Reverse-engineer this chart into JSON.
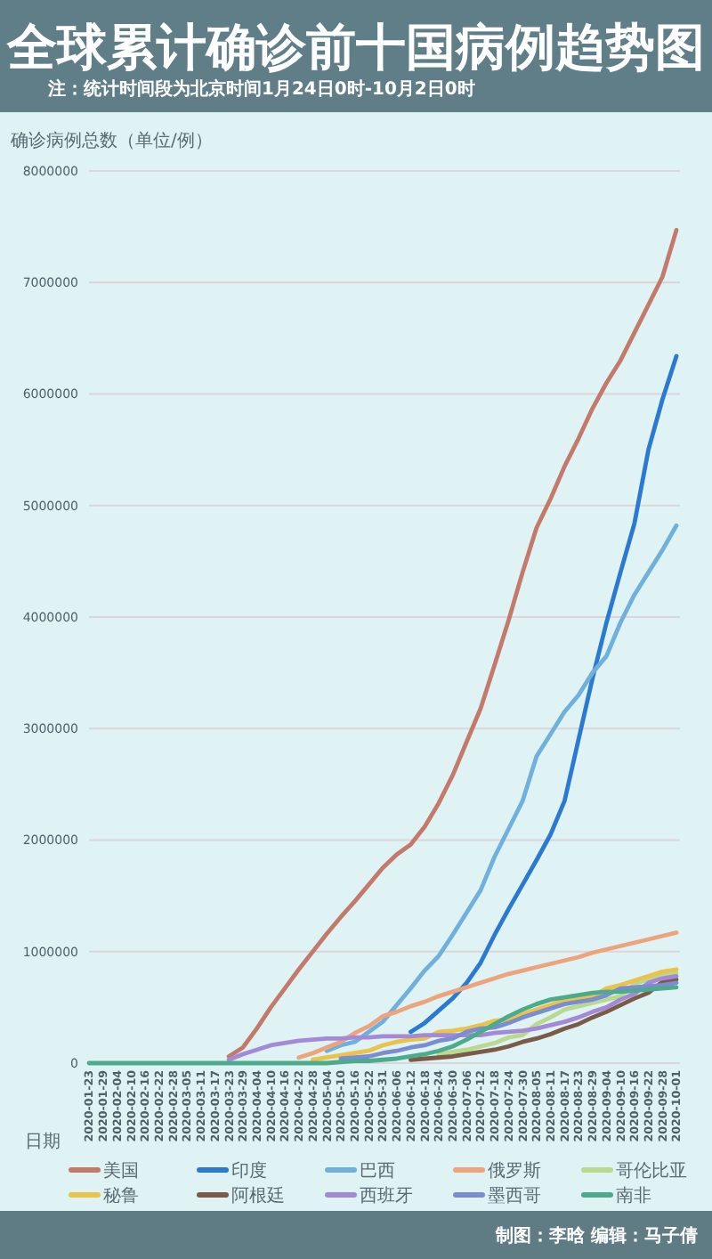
{
  "chart_data": {
    "type": "line",
    "title": "全球累计确诊前十国病例趋势图",
    "subtitle": "注：统计时间段为北京时间1月24日0时-10月2日0时",
    "xlabel": "日期",
    "ylabel": "确诊病例总数（单位/例）",
    "annotations": [
      "制图：李晗 编辑：马子倩"
    ],
    "categories": [
      "2020-01-23",
      "2020-01-29",
      "2020-02-04",
      "2020-02-10",
      "2020-02-16",
      "2020-02-22",
      "2020-02-28",
      "2020-03-05",
      "2020-03-11",
      "2020-03-17",
      "2020-03-23",
      "2020-03-29",
      "2020-04-04",
      "2020-04-10",
      "2020-04-16",
      "2020-04-22",
      "2020-04-28",
      "2020-05-04",
      "2020-05-10",
      "2020-05-16",
      "2020-05-22",
      "2020-05-31",
      "2020-06-06",
      "2020-06-12",
      "2020-06-18",
      "2020-06-24",
      "2020-06-30",
      "2020-07-06",
      "2020-07-12",
      "2020-07-18",
      "2020-07-24",
      "2020-07-30",
      "2020-08-05",
      "2020-08-11",
      "2020-08-17",
      "2020-08-23",
      "2020-08-29",
      "2020-09-04",
      "2020-09-10",
      "2020-09-16",
      "2020-09-22",
      "2020-09-28",
      "2020-10-01"
    ],
    "ylim": [
      0,
      8000000
    ],
    "yticks": [
      0,
      1000000,
      2000000,
      3000000,
      4000000,
      5000000,
      6000000,
      7000000,
      8000000
    ],
    "grid": "y",
    "legend": "bottom",
    "series": [
      {
        "name": "美国",
        "color": "#c47a6a",
        "values": [
          null,
          null,
          null,
          null,
          null,
          null,
          null,
          null,
          null,
          null,
          60000,
          140000,
          310000,
          500000,
          670000,
          840000,
          1000000,
          1160000,
          1310000,
          1450000,
          1600000,
          1750000,
          1870000,
          1960000,
          2120000,
          2330000,
          2580000,
          2880000,
          3180000,
          3570000,
          3970000,
          4400000,
          4800000,
          5060000,
          5350000,
          5600000,
          5870000,
          6100000,
          6300000,
          6550000,
          6800000,
          7050000,
          7470000
        ]
      },
      {
        "name": "印度",
        "color": "#2a7ad2",
        "values": [
          null,
          null,
          null,
          null,
          null,
          null,
          null,
          null,
          null,
          null,
          null,
          null,
          null,
          null,
          null,
          null,
          null,
          null,
          null,
          null,
          null,
          null,
          null,
          280000,
          360000,
          470000,
          580000,
          720000,
          900000,
          1150000,
          1380000,
          1600000,
          1820000,
          2050000,
          2350000,
          2900000,
          3450000,
          3950000,
          4400000,
          4840000,
          5500000,
          5950000,
          6340000
        ]
      },
      {
        "name": "巴西",
        "color": "#6fb0dc",
        "values": [
          null,
          null,
          null,
          null,
          null,
          null,
          null,
          null,
          null,
          null,
          null,
          null,
          null,
          null,
          null,
          null,
          null,
          110000,
          160000,
          190000,
          280000,
          370000,
          520000,
          670000,
          830000,
          960000,
          1150000,
          1350000,
          1550000,
          1850000,
          2100000,
          2350000,
          2750000,
          2950000,
          3150000,
          3300000,
          3500000,
          3650000,
          3950000,
          4200000,
          4400000,
          4600000,
          4820000
        ]
      },
      {
        "name": "俄罗斯",
        "color": "#eda47c",
        "values": [
          null,
          null,
          null,
          null,
          null,
          null,
          null,
          null,
          null,
          null,
          null,
          null,
          null,
          null,
          null,
          50000,
          90000,
          140000,
          190000,
          270000,
          330000,
          420000,
          460000,
          510000,
          550000,
          600000,
          640000,
          680000,
          720000,
          760000,
          800000,
          830000,
          860000,
          890000,
          920000,
          950000,
          990000,
          1020000,
          1050000,
          1080000,
          1110000,
          1140000,
          1170000
        ]
      },
      {
        "name": "哥伦比亚",
        "color": "#b9da8e",
        "values": [
          null,
          null,
          null,
          null,
          null,
          null,
          null,
          null,
          null,
          null,
          null,
          null,
          null,
          null,
          null,
          null,
          null,
          null,
          null,
          null,
          null,
          null,
          null,
          null,
          null,
          80000,
          100000,
          120000,
          150000,
          180000,
          230000,
          250000,
          350000,
          410000,
          480000,
          510000,
          540000,
          570000,
          600000,
          710000,
          750000,
          790000,
          810000
        ]
      },
      {
        "name": "秘鲁",
        "color": "#e9c34a",
        "values": [
          null,
          null,
          null,
          null,
          null,
          null,
          null,
          null,
          null,
          null,
          null,
          null,
          null,
          null,
          null,
          null,
          30000,
          50000,
          70000,
          90000,
          110000,
          160000,
          190000,
          210000,
          220000,
          280000,
          290000,
          310000,
          340000,
          380000,
          390000,
          440000,
          480000,
          520000,
          560000,
          580000,
          600000,
          670000,
          700000,
          740000,
          780000,
          820000,
          840000
        ]
      },
      {
        "name": "阿根廷",
        "color": "#7b5a48",
        "values": [
          null,
          null,
          null,
          null,
          null,
          null,
          null,
          null,
          null,
          null,
          null,
          null,
          null,
          null,
          null,
          null,
          null,
          null,
          null,
          null,
          null,
          null,
          null,
          30000,
          40000,
          50000,
          60000,
          80000,
          100000,
          120000,
          150000,
          190000,
          220000,
          260000,
          310000,
          350000,
          410000,
          460000,
          520000,
          580000,
          630000,
          730000,
          750000
        ]
      },
      {
        "name": "西班牙",
        "color": "#a48ad6",
        "values": [
          null,
          null,
          null,
          null,
          null,
          null,
          null,
          null,
          null,
          null,
          30000,
          80000,
          120000,
          160000,
          180000,
          200000,
          210000,
          220000,
          220000,
          230000,
          230000,
          240000,
          240000,
          240000,
          250000,
          250000,
          250000,
          250000,
          250000,
          270000,
          280000,
          290000,
          310000,
          340000,
          370000,
          410000,
          460000,
          500000,
          570000,
          620000,
          720000,
          760000,
          780000
        ]
      },
      {
        "name": "墨西哥",
        "color": "#7c8cd2",
        "values": [
          null,
          null,
          null,
          null,
          null,
          null,
          null,
          null,
          null,
          null,
          null,
          null,
          null,
          null,
          null,
          null,
          null,
          null,
          40000,
          50000,
          60000,
          90000,
          110000,
          140000,
          160000,
          200000,
          220000,
          280000,
          310000,
          320000,
          360000,
          410000,
          450000,
          490000,
          530000,
          550000,
          570000,
          610000,
          670000,
          680000,
          690000,
          700000,
          720000
        ]
      },
      {
        "name": "南非",
        "color": "#4cab8c",
        "values": [
          0,
          0,
          0,
          0,
          0,
          0,
          0,
          0,
          0,
          0,
          0,
          0,
          0,
          0,
          0,
          0,
          0,
          0,
          10000,
          20000,
          20000,
          30000,
          40000,
          60000,
          80000,
          110000,
          150000,
          210000,
          280000,
          350000,
          420000,
          480000,
          530000,
          570000,
          590000,
          610000,
          630000,
          640000,
          640000,
          650000,
          660000,
          670000,
          680000
        ]
      }
    ]
  }
}
